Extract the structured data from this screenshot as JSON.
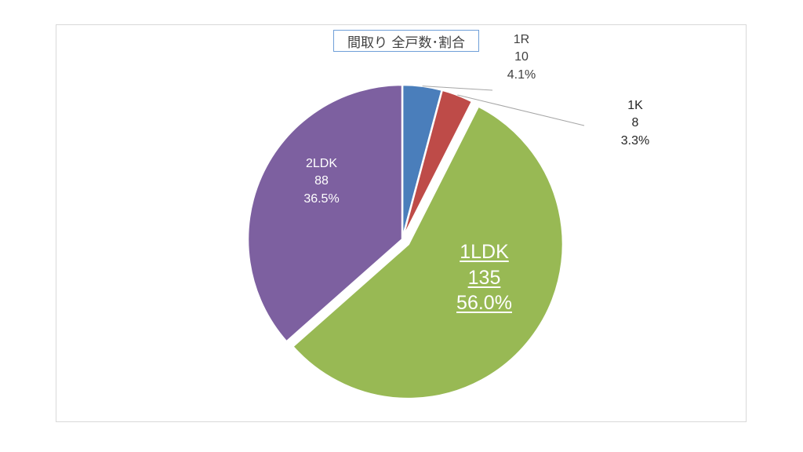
{
  "chart_data": {
    "type": "pie",
    "title": "間取り 全戸数･割合",
    "slices": [
      {
        "name": "1R",
        "count": "10",
        "percent": "4.1%",
        "value": 10,
        "color": "#4a7ebb"
      },
      {
        "name": "1K",
        "count": "8",
        "percent": "3.3%",
        "value": 8,
        "color": "#be4b48"
      },
      {
        "name": "1LDK",
        "count": "135",
        "percent": "56.0%",
        "value": 135,
        "color": "#98b954",
        "exploded": true
      },
      {
        "name": "2LDK",
        "count": "88",
        "percent": "36.5%",
        "value": 88,
        "color": "#7d60a0"
      }
    ],
    "legend": "none",
    "start_angle": "12 o'clock, clockwise"
  }
}
